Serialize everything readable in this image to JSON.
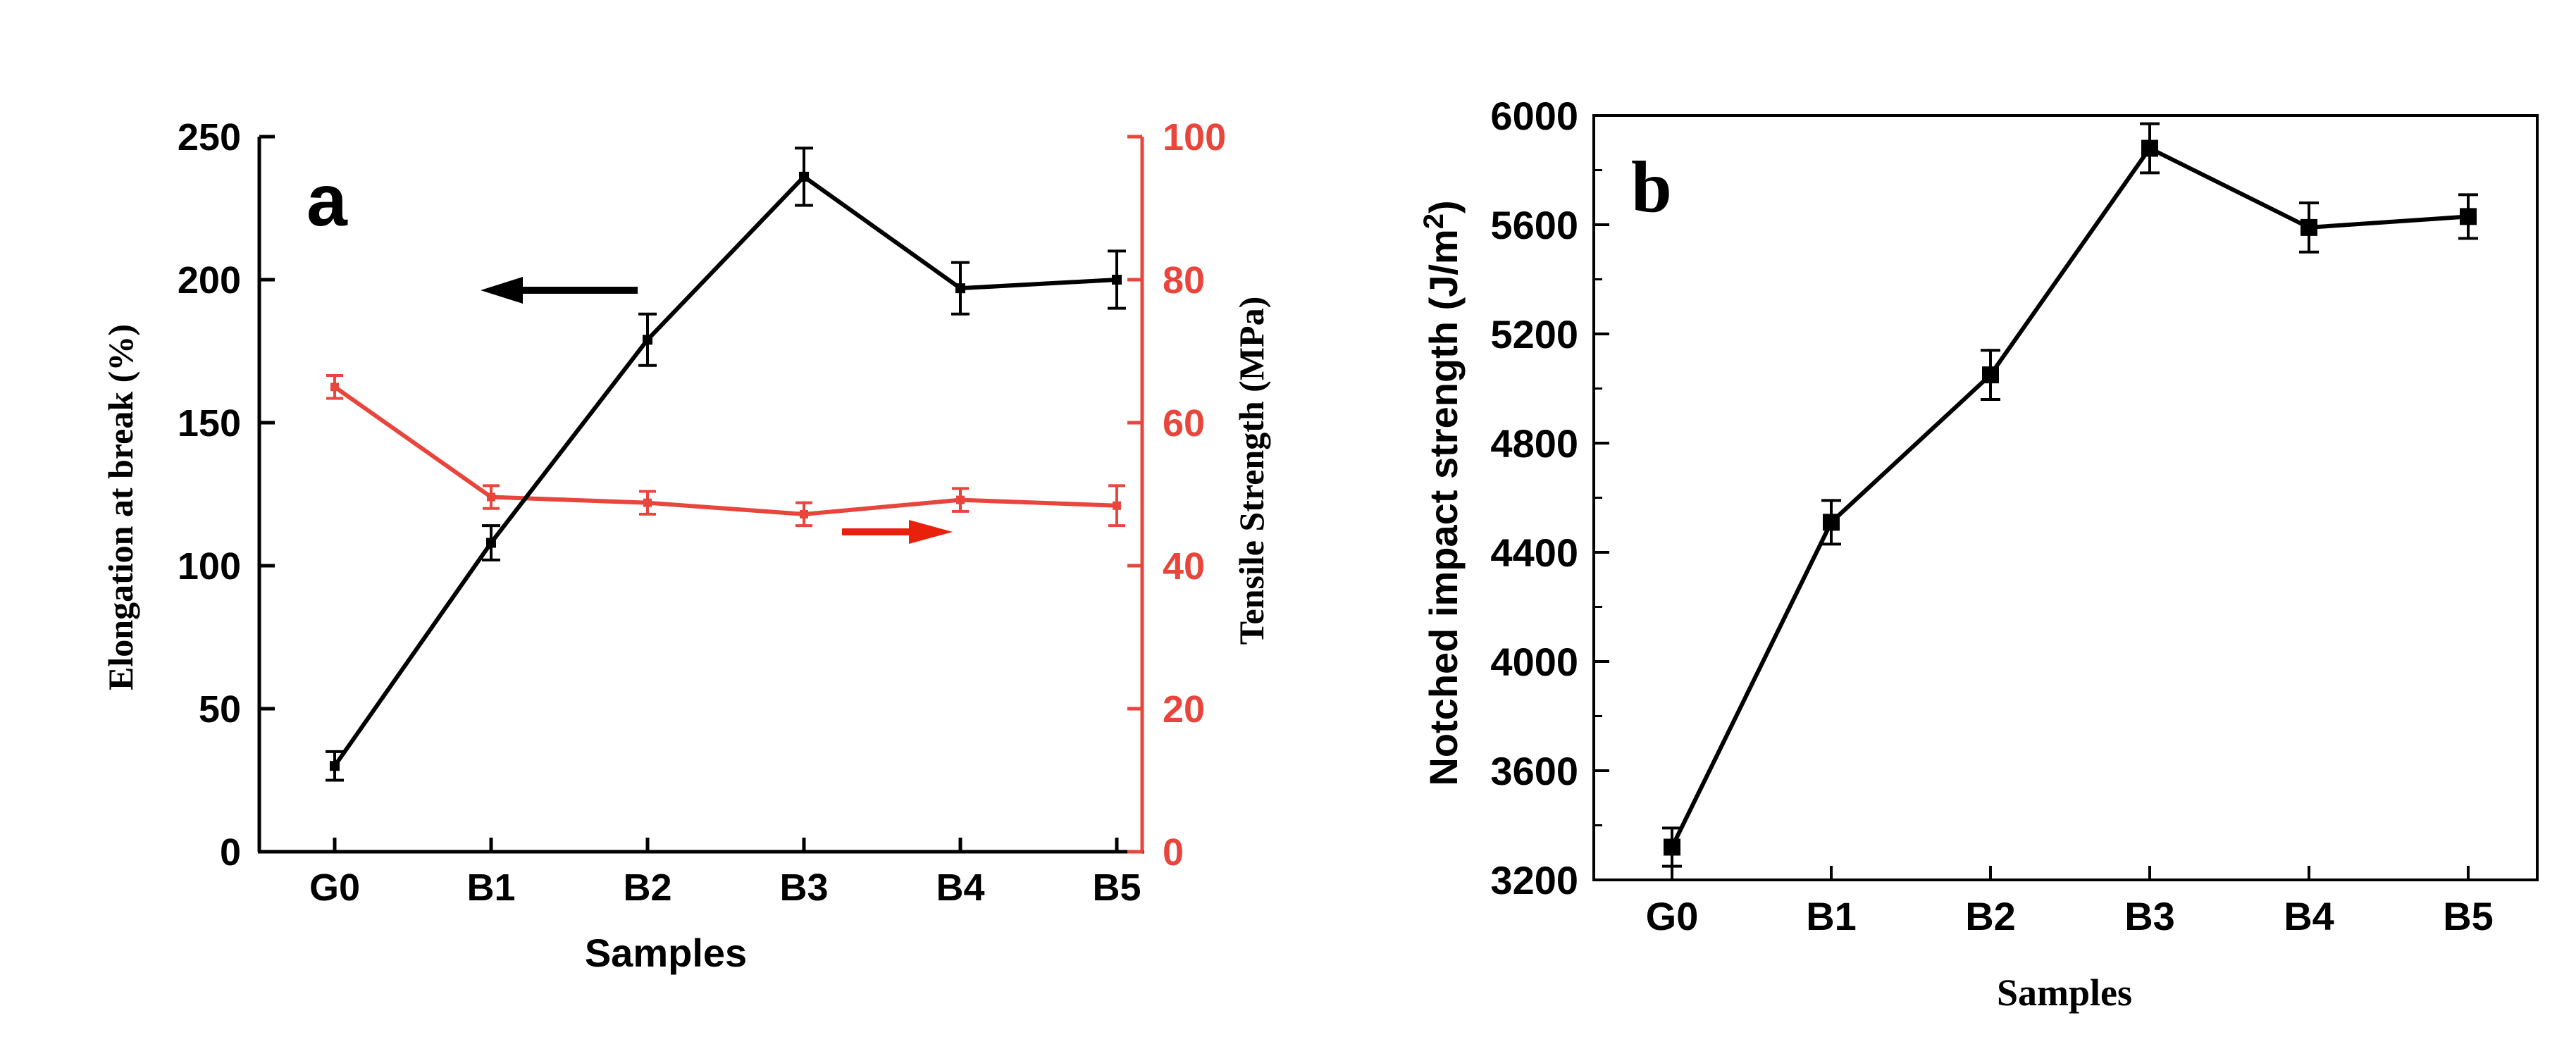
{
  "chart_data": [
    {
      "id": "a",
      "type": "line",
      "panel_label": "a",
      "categories": [
        "G0",
        "B1",
        "B2",
        "B3",
        "B4",
        "B5"
      ],
      "xlabel": "Samples",
      "ylabel": "Elongation at break (%)",
      "y2label": "Tensile Strength (MPa)",
      "ylim": [
        0,
        250
      ],
      "yticks": [
        "0",
        "50",
        "100",
        "150",
        "200",
        "250"
      ],
      "y2lim": [
        0,
        100
      ],
      "y2ticks": [
        "0",
        "20",
        "40",
        "60",
        "80",
        "100"
      ],
      "series": [
        {
          "name": "Elongation at break",
          "axis": "left",
          "color": "#000000",
          "values": [
            30,
            108,
            179,
            236,
            197,
            200
          ],
          "errors": [
            5,
            6,
            9,
            10,
            9,
            10
          ]
        },
        {
          "name": "Tensile Strength",
          "axis": "right",
          "color": "#e8453c",
          "values": [
            65,
            49.6,
            48.8,
            47.2,
            49.2,
            48.4
          ],
          "errors": [
            1.6,
            1.6,
            1.6,
            1.6,
            1.6,
            2.8
          ]
        }
      ],
      "arrows": [
        {
          "direction": "left",
          "color": "#000000",
          "series": "Elongation at break"
        },
        {
          "direction": "right",
          "color": "#e8200c",
          "series": "Tensile Strength"
        }
      ],
      "colors": {
        "left_axis": "#000000",
        "right_axis": "#e8453c"
      }
    },
    {
      "id": "b",
      "type": "line",
      "panel_label": "b",
      "categories": [
        "G0",
        "B1",
        "B2",
        "B3",
        "B4",
        "B5"
      ],
      "xlabel": "Samples",
      "ylabel": "Notched impact strength (J/m",
      "ylabel_sup": "2",
      "ylabel_end": ")",
      "ylim": [
        3200,
        6000
      ],
      "yticks": [
        "3200",
        "3600",
        "4000",
        "4400",
        "4800",
        "5200",
        "5600",
        "6000"
      ],
      "series": [
        {
          "name": "Notched impact strength",
          "color": "#000000",
          "values": [
            3320,
            4510,
            5050,
            5880,
            5590,
            5630
          ],
          "errors": [
            70,
            80,
            90,
            90,
            90,
            80
          ]
        }
      ]
    }
  ]
}
